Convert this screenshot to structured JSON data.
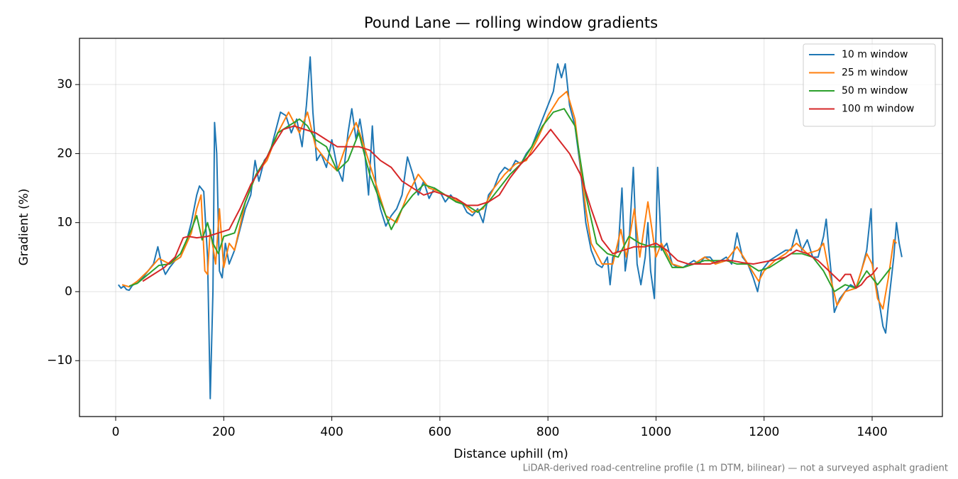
{
  "chart_data": {
    "type": "line",
    "title": "Pound Lane — rolling window gradients",
    "x_label": "Distance uphill (m)",
    "y_label": "Gradient (%)",
    "note": "LiDAR-derived road-centreline profile (1 m DTM, bilinear) — not a surveyed asphalt gradient",
    "xlim": [
      -67,
      1530
    ],
    "ylim": [
      -18.1,
      36.7
    ],
    "xticks": [
      0,
      200,
      400,
      600,
      800,
      1000,
      1200,
      1400
    ],
    "yticks": [
      {
        "value": -10,
        "label": "−10"
      },
      0,
      10,
      20,
      30
    ],
    "grid": true,
    "legend": "upper right",
    "series": [
      {
        "name": "10 m window",
        "color": "#1f77b4",
        "x": [
          5,
          10,
          15,
          20,
          25,
          30,
          40,
          50,
          60,
          70,
          78,
          85,
          92,
          100,
          110,
          120,
          130,
          140,
          150,
          155,
          163,
          170,
          175,
          180,
          183,
          187,
          192,
          197,
          203,
          210,
          220,
          230,
          240,
          250,
          258,
          265,
          275,
          285,
          295,
          305,
          315,
          325,
          335,
          345,
          353,
          360,
          365,
          372,
          380,
          390,
          400,
          410,
          420,
          430,
          437,
          445,
          452,
          460,
          468,
          475,
          482,
          490,
          500,
          510,
          520,
          530,
          540,
          550,
          560,
          570,
          580,
          590,
          600,
          610,
          620,
          630,
          640,
          650,
          660,
          670,
          680,
          690,
          700,
          710,
          720,
          730,
          740,
          750,
          760,
          770,
          780,
          790,
          800,
          810,
          818,
          825,
          832,
          840,
          850,
          860,
          870,
          880,
          890,
          900,
          910,
          915,
          920,
          930,
          937,
          943,
          950,
          958,
          965,
          972,
          980,
          985,
          990,
          997,
          1003,
          1010,
          1020,
          1030,
          1040,
          1050,
          1060,
          1070,
          1080,
          1090,
          1100,
          1110,
          1120,
          1130,
          1140,
          1150,
          1160,
          1170,
          1180,
          1188,
          1195,
          1210,
          1220,
          1230,
          1240,
          1250,
          1260,
          1270,
          1280,
          1290,
          1300,
          1310,
          1315,
          1320,
          1325,
          1330,
          1340,
          1350,
          1360,
          1370,
          1380,
          1390,
          1398,
          1402,
          1410,
          1420,
          1425,
          1430,
          1440,
          1445,
          1450,
          1455
        ],
        "values": [
          1,
          0.5,
          0.8,
          0.3,
          0.2,
          0.8,
          1.5,
          2,
          3,
          4,
          6.5,
          4,
          2.5,
          3.5,
          4.5,
          5,
          7,
          10,
          14,
          15.3,
          14.5,
          5,
          -15.5,
          0,
          24.5,
          20,
          3,
          2,
          7,
          4,
          6,
          9,
          12,
          14,
          19,
          16,
          19,
          20,
          23,
          26,
          25.5,
          23,
          25,
          21,
          27,
          34,
          26,
          19,
          20,
          18,
          22,
          18,
          16,
          23,
          26.5,
          22,
          25,
          21,
          14,
          24,
          15,
          12,
          9.5,
          11,
          12,
          14,
          19.5,
          17,
          14,
          16,
          13.5,
          15,
          14.5,
          13,
          14,
          13,
          13,
          11.5,
          11,
          12,
          10,
          14,
          15,
          17,
          18,
          17.5,
          19,
          18.5,
          20,
          21,
          23,
          25,
          27,
          29,
          33,
          31,
          33,
          27,
          24,
          18,
          10,
          6,
          4,
          3.5,
          5,
          1,
          5,
          6,
          15,
          3,
          7,
          18,
          4,
          1,
          5,
          10,
          3,
          -1,
          18,
          6,
          7,
          4,
          3.5,
          3.5,
          4,
          4.5,
          4,
          5,
          5,
          4,
          4.5,
          5,
          4,
          8.5,
          5,
          4,
          2,
          0,
          3,
          4.5,
          5,
          5.5,
          6,
          6,
          9,
          6,
          7.5,
          5,
          5,
          8,
          10.5,
          6,
          2,
          -3,
          -1,
          0,
          1,
          0.5,
          3,
          6,
          12,
          3,
          0,
          -5,
          -6,
          -2,
          5,
          10,
          7,
          5
        ]
      },
      {
        "name": "25 m window",
        "color": "#ff7f0e",
        "x": [
          12,
          25,
          40,
          60,
          80,
          100,
          120,
          140,
          150,
          158,
          165,
          170,
          175,
          185,
          192,
          200,
          210,
          220,
          240,
          260,
          280,
          300,
          320,
          340,
          355,
          370,
          390,
          410,
          430,
          445,
          460,
          480,
          500,
          520,
          540,
          560,
          580,
          600,
          620,
          640,
          660,
          680,
          700,
          720,
          740,
          760,
          780,
          800,
          820,
          835,
          850,
          870,
          880,
          900,
          920,
          935,
          945,
          960,
          970,
          985,
          1000,
          1010,
          1030,
          1050,
          1070,
          1090,
          1110,
          1130,
          1150,
          1170,
          1190,
          1200,
          1220,
          1240,
          1260,
          1280,
          1300,
          1310,
          1320,
          1335,
          1350,
          1370,
          1390,
          1400,
          1410,
          1420,
          1430,
          1440,
          1445
        ],
        "values": [
          1,
          0.7,
          1.5,
          3,
          4.8,
          4,
          5,
          8.5,
          12,
          14,
          3,
          2.5,
          9,
          4,
          12,
          3.5,
          7,
          6,
          13,
          17,
          19,
          23,
          26,
          23,
          26,
          21,
          19,
          17.5,
          22,
          24.5,
          21,
          16,
          11,
          10,
          14,
          17,
          15,
          14.5,
          13.5,
          13,
          11.5,
          12,
          15,
          17,
          18.5,
          19,
          22,
          25.5,
          28,
          29,
          25,
          12,
          7,
          4,
          4,
          9,
          5,
          12,
          5,
          13,
          5,
          7,
          4,
          3.5,
          4,
          5,
          4,
          4.5,
          6.5,
          4,
          1.5,
          3,
          4.5,
          5.5,
          7,
          5.5,
          6,
          7,
          3,
          -2,
          0,
          0.5,
          5.5,
          4,
          -1,
          -2.5,
          2,
          7.5,
          7
        ]
      },
      {
        "name": "50 m window",
        "color": "#2ca02c",
        "x": [
          25,
          40,
          60,
          80,
          100,
          120,
          140,
          150,
          160,
          170,
          180,
          190,
          200,
          220,
          240,
          260,
          280,
          300,
          320,
          340,
          355,
          370,
          390,
          410,
          430,
          450,
          470,
          490,
          510,
          530,
          550,
          570,
          590,
          610,
          630,
          650,
          670,
          690,
          710,
          730,
          750,
          770,
          790,
          810,
          830,
          850,
          870,
          890,
          910,
          930,
          950,
          970,
          990,
          1010,
          1030,
          1050,
          1070,
          1090,
          1110,
          1130,
          1150,
          1170,
          1190,
          1210,
          1230,
          1250,
          1270,
          1290,
          1310,
          1330,
          1350,
          1370,
          1390,
          1400,
          1410,
          1420,
          1435
        ],
        "values": [
          0.8,
          1.2,
          2.5,
          3.8,
          4,
          5.5,
          9,
          11,
          7.5,
          10,
          7,
          5.5,
          8,
          8.5,
          13,
          17,
          19.5,
          23,
          24,
          25,
          24,
          22,
          21,
          17.5,
          19,
          23,
          17,
          13,
          9,
          12,
          14,
          15.5,
          15,
          14,
          13,
          12.5,
          11.5,
          13,
          15,
          17,
          18.5,
          21,
          24,
          26,
          26.5,
          24,
          14,
          7,
          5.5,
          5,
          8,
          7,
          6.5,
          6.5,
          3.5,
          3.5,
          4,
          4.5,
          4.5,
          4.5,
          4,
          4,
          3,
          3.5,
          4.5,
          5.5,
          5.5,
          5,
          3,
          0,
          1,
          0.5,
          3,
          2,
          1,
          2,
          3.5
        ]
      },
      {
        "name": "100 m window",
        "color": "#d62728",
        "x": [
          50,
          70,
          90,
          110,
          125,
          135,
          150,
          170,
          190,
          210,
          230,
          250,
          270,
          290,
          310,
          330,
          350,
          370,
          390,
          410,
          430,
          450,
          470,
          490,
          510,
          530,
          550,
          570,
          590,
          610,
          630,
          650,
          670,
          690,
          710,
          730,
          750,
          770,
          790,
          805,
          820,
          840,
          860,
          880,
          900,
          920,
          940,
          960,
          980,
          1000,
          1020,
          1040,
          1060,
          1080,
          1100,
          1120,
          1140,
          1160,
          1180,
          1200,
          1220,
          1240,
          1260,
          1280,
          1300,
          1320,
          1340,
          1350,
          1360,
          1370,
          1380,
          1390,
          1400,
          1410
        ],
        "values": [
          1.5,
          2.5,
          3.5,
          5,
          7.8,
          8,
          7.8,
          8,
          8.5,
          9,
          12,
          15.5,
          18,
          21,
          23.5,
          24,
          23.5,
          23,
          22,
          21,
          21,
          21,
          20.5,
          19,
          18,
          16,
          15,
          14,
          14.5,
          14,
          13.5,
          12.5,
          12.5,
          13,
          14,
          16.5,
          18.5,
          20,
          22,
          23.5,
          22,
          20,
          17,
          12,
          7.5,
          5.5,
          6,
          6.5,
          6.5,
          7,
          6,
          4.5,
          4,
          4,
          4,
          4.5,
          4.5,
          4.2,
          4,
          4.3,
          4.6,
          5,
          6,
          5.5,
          4.5,
          3,
          1.5,
          2.5,
          2.5,
          0.5,
          1,
          2,
          2.5,
          3.5
        ]
      }
    ]
  }
}
